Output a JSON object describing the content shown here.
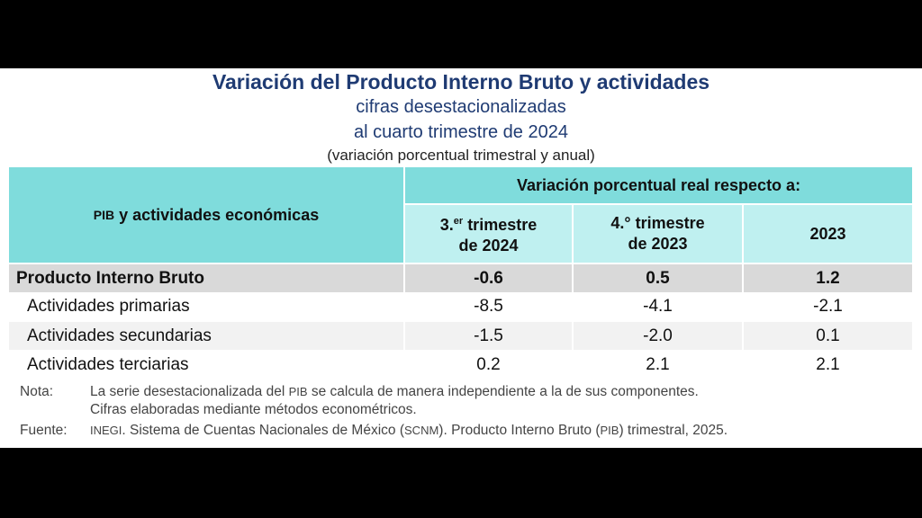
{
  "title": "Variación del Producto Interno Bruto y actividades",
  "subtitle1": "cifras desestacionalizadas",
  "subtitle2": "al cuarto trimestre de 2024",
  "subtitle3": "(variación porcentual trimestral y anual)",
  "table": {
    "header_left_abbr": "PIB",
    "header_left_rest": " y actividades económicas",
    "header_group": "Variación porcentual real respecto a:",
    "col1_line1_pre": "3.",
    "col1_line1_sup": "er",
    "col1_line1_post": " trimestre",
    "col1_line2": "de 2024",
    "col2_line1": "4.° trimestre",
    "col2_line2": "de 2023",
    "col3": "2023",
    "rows": [
      {
        "label": "Producto Interno Bruto",
        "v1": "-0.6",
        "v2": "0.5",
        "v3": "1.2"
      },
      {
        "label": "Actividades primarias",
        "v1": "-8.5",
        "v2": "-4.1",
        "v3": "-2.1"
      },
      {
        "label": "Actividades secundarias",
        "v1": "-1.5",
        "v2": "-2.0",
        "v3": "0.1"
      },
      {
        "label": "Actividades terciarias",
        "v1": "0.2",
        "v2": "2.1",
        "v3": "2.1"
      }
    ]
  },
  "notes": {
    "nota_label": "Nota:",
    "nota_a": "La serie desestacionalizada del ",
    "nota_abbr": "PIB",
    "nota_b": " se calcula de manera independiente a la de sus componentes.",
    "nota_line2": "Cifras elaboradas mediante métodos econométricos.",
    "fuente_label": "Fuente:",
    "fuente_abbr1": "INEGI",
    "fuente_a": ". Sistema de Cuentas Nacionales de México (",
    "fuente_abbr2": "SCNM",
    "fuente_b": "). Producto Interno Bruto (",
    "fuente_abbr3": "PIB",
    "fuente_c": ") trimestral, 2025."
  }
}
